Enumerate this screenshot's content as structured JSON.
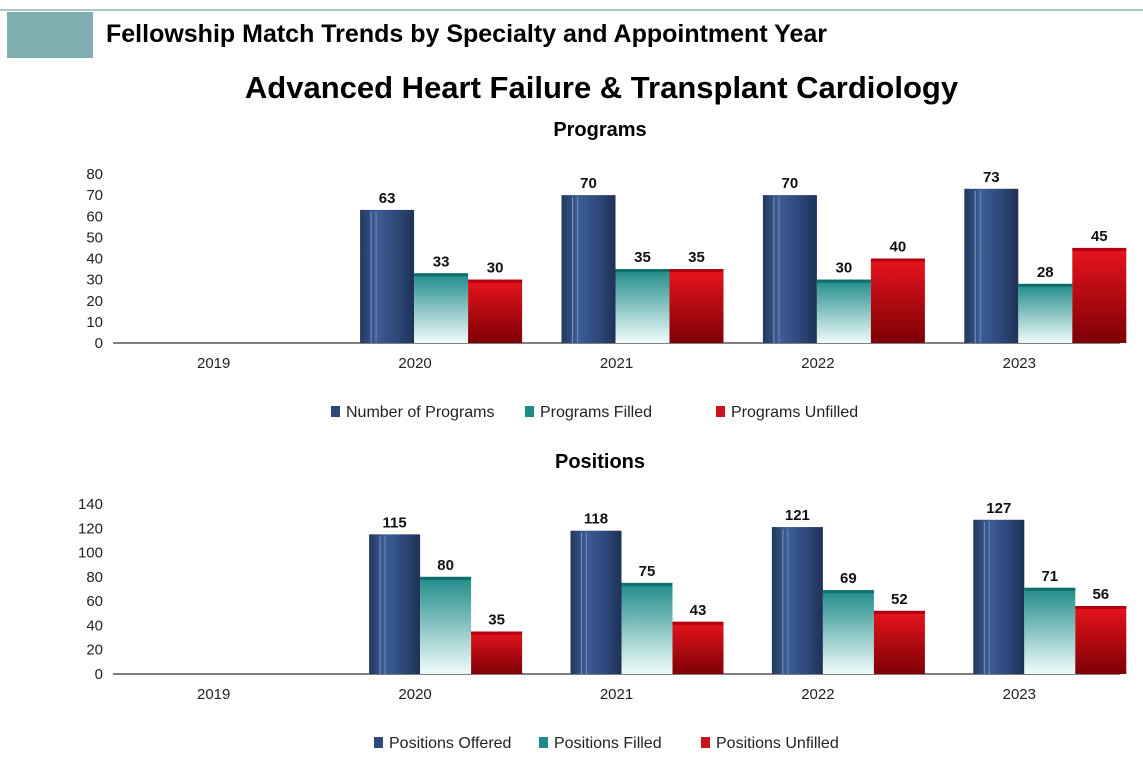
{
  "header": {
    "title": "Fellowship Match Trends by Specialty and Appointment Year"
  },
  "main_title": "Advanced Heart Failure & Transplant Cardiology",
  "colors": {
    "offered": "#2e4a7a",
    "filled": "#1f8b88",
    "unfilled": "#c9141c",
    "accent": "#7fafb1"
  },
  "chart_data": [
    {
      "type": "bar",
      "title": "Programs",
      "categories": [
        "2019",
        "2020",
        "2021",
        "2022",
        "2023"
      ],
      "ylim": [
        0,
        80
      ],
      "yticks": [
        0,
        10,
        20,
        30,
        40,
        50,
        60,
        70,
        80
      ],
      "grid": false,
      "legend_position": "bottom",
      "series": [
        {
          "name": "Number of Programs",
          "color": "offered",
          "values": [
            null,
            63,
            70,
            70,
            73
          ]
        },
        {
          "name": "Programs Filled",
          "color": "filled",
          "values": [
            null,
            33,
            35,
            30,
            28
          ]
        },
        {
          "name": "Programs Unfilled",
          "color": "unfilled",
          "values": [
            null,
            30,
            35,
            40,
            45
          ]
        }
      ]
    },
    {
      "type": "bar",
      "title": "Positions",
      "categories": [
        "2019",
        "2020",
        "2021",
        "2022",
        "2023"
      ],
      "ylim": [
        0,
        140
      ],
      "yticks": [
        0,
        20,
        40,
        60,
        80,
        100,
        120,
        140
      ],
      "grid": false,
      "legend_position": "bottom",
      "series": [
        {
          "name": "Positions Offered",
          "color": "offered",
          "values": [
            null,
            115,
            118,
            121,
            127
          ]
        },
        {
          "name": "Positions Filled",
          "color": "filled",
          "values": [
            null,
            80,
            75,
            69,
            71
          ]
        },
        {
          "name": "Positions Unfilled",
          "color": "unfilled",
          "values": [
            null,
            35,
            43,
            52,
            56
          ]
        }
      ]
    }
  ]
}
